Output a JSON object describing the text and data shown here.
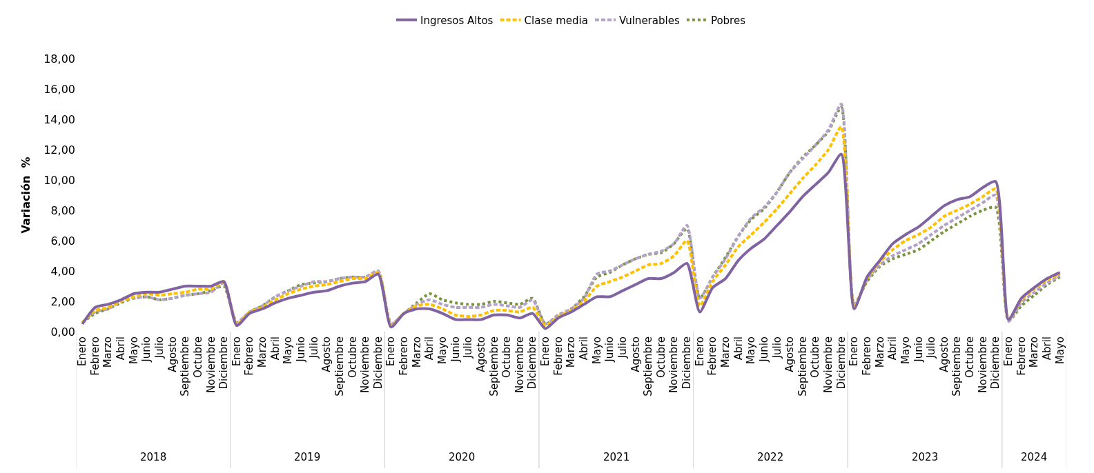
{
  "chart_data": {
    "type": "line",
    "ylabel": "Variación  %",
    "categories": [
      "Enero",
      "Febrero",
      "Marzo",
      "Abril",
      "Mayo",
      "Junio",
      "Julio",
      "Agosto",
      "Septiembre",
      "Octubre",
      "Noviembre",
      "Diciembre",
      "Enero",
      "Febrero",
      "Marzo",
      "Abril",
      "Mayo",
      "Junio",
      "Julio",
      "Agosto",
      "Septiembre",
      "Octubre",
      "Noviembre",
      "Diciembre",
      "Enero",
      "Febrero",
      "Marzo",
      "Abril",
      "Mayo",
      "Junio",
      "Julio",
      "Agosto",
      "Septiembre",
      "Octubre",
      "Noviembre",
      "Diciembre",
      "Enero",
      "Febrero",
      "Marzo",
      "Abril",
      "Mayo",
      "Junio",
      "Julio",
      "Agosto",
      "Septiembre",
      "Octubre",
      "Noviembre",
      "Diciembre",
      "Enero",
      "Febrero",
      "Marzo",
      "Abril",
      "Mayo",
      "Junio",
      "Julio",
      "Agosto",
      "Septiembre",
      "Octubre",
      "Noviembre",
      "Diciembre",
      "Enero",
      "Febrero",
      "Marzo",
      "Abril",
      "Mayo",
      "Junio",
      "Julio",
      "Agosto",
      "Septiembre",
      "Octubre",
      "Noviembre",
      "Diciembre",
      "Enero",
      "Febrero",
      "Marzo",
      "Abril",
      "Mayo"
    ],
    "annotations": [
      "2018",
      "2019",
      "2020",
      "2021",
      "2022",
      "2023",
      "2024"
    ],
    "series": [
      {
        "name": "Ingresos Altos",
        "color": "#8064a2",
        "line_style": "solid",
        "values": [
          0.5,
          1.6,
          1.8,
          2.1,
          2.5,
          2.6,
          2.6,
          2.8,
          3.0,
          3.0,
          3.0,
          3.3,
          0.4,
          1.2,
          1.5,
          1.9,
          2.2,
          2.4,
          2.6,
          2.7,
          3.0,
          3.2,
          3.3,
          3.8,
          0.3,
          1.2,
          1.5,
          1.5,
          1.2,
          0.8,
          0.8,
          0.8,
          1.1,
          1.1,
          0.9,
          1.2,
          0.2,
          0.9,
          1.3,
          1.8,
          2.3,
          2.3,
          2.7,
          3.1,
          3.5,
          3.5,
          3.9,
          4.5,
          1.3,
          2.9,
          3.5,
          4.7,
          5.5,
          6.1,
          7.0,
          7.9,
          8.9,
          9.7,
          10.5,
          11.7,
          1.5,
          3.6,
          4.7,
          5.8,
          6.4,
          6.9,
          7.6,
          8.3,
          8.7,
          8.9,
          9.5,
          9.9,
          0.8,
          2.2,
          2.9,
          3.5,
          3.9
        ]
      },
      {
        "name": "Clase media",
        "color": "#ffc000",
        "line_style": "dashed",
        "values": [
          0.6,
          1.4,
          1.6,
          2.0,
          2.3,
          2.5,
          2.4,
          2.5,
          2.6,
          2.8,
          2.8,
          3.3,
          0.5,
          1.3,
          1.6,
          2.1,
          2.5,
          2.8,
          3.0,
          3.1,
          3.3,
          3.5,
          3.5,
          3.9,
          0.4,
          1.2,
          1.7,
          1.8,
          1.5,
          1.1,
          1.0,
          1.1,
          1.4,
          1.4,
          1.3,
          1.6,
          0.4,
          1.0,
          1.4,
          2.0,
          3.0,
          3.3,
          3.6,
          4.0,
          4.4,
          4.5,
          5.0,
          6.0,
          1.7,
          3.3,
          4.4,
          5.6,
          6.4,
          7.2,
          8.1,
          9.1,
          10.1,
          11.0,
          12.0,
          13.5,
          1.6,
          3.5,
          4.6,
          5.4,
          6.0,
          6.4,
          6.9,
          7.6,
          8.0,
          8.4,
          8.9,
          9.4,
          0.8,
          2.1,
          2.8,
          3.4,
          3.8
        ]
      },
      {
        "name": "Vulnerables",
        "color": "#b3a2c7",
        "line_style": "dashed",
        "values": [
          0.6,
          1.3,
          1.5,
          2.0,
          2.2,
          2.3,
          2.1,
          2.2,
          2.4,
          2.5,
          2.6,
          3.2,
          0.6,
          1.3,
          1.7,
          2.3,
          2.7,
          3.0,
          3.3,
          3.3,
          3.5,
          3.6,
          3.6,
          4.0,
          0.5,
          1.2,
          1.8,
          2.1,
          1.8,
          1.6,
          1.6,
          1.6,
          1.8,
          1.7,
          1.6,
          2.1,
          0.5,
          1.1,
          1.5,
          2.2,
          3.8,
          4.0,
          4.4,
          4.8,
          5.1,
          5.3,
          5.8,
          7.0,
          2.2,
          3.6,
          4.8,
          6.3,
          7.5,
          8.2,
          9.2,
          10.5,
          11.4,
          12.3,
          13.3,
          15.0,
          1.7,
          3.4,
          4.4,
          5.0,
          5.4,
          5.8,
          6.4,
          7.0,
          7.5,
          8.0,
          8.5,
          9.0,
          0.7,
          1.9,
          2.6,
          3.2,
          3.7
        ]
      },
      {
        "name": "Pobres",
        "color": "#77933c",
        "line_style": "dotted",
        "values": [
          0.6,
          1.2,
          1.5,
          1.9,
          2.2,
          2.3,
          2.1,
          2.2,
          2.4,
          2.5,
          2.7,
          3.0,
          0.6,
          1.3,
          1.7,
          2.3,
          2.7,
          3.1,
          3.2,
          3.3,
          3.5,
          3.6,
          3.6,
          4.0,
          0.5,
          1.2,
          1.9,
          2.5,
          2.1,
          1.9,
          1.8,
          1.8,
          2.0,
          1.9,
          1.8,
          2.2,
          0.5,
          1.1,
          1.5,
          2.3,
          3.6,
          3.9,
          4.4,
          4.8,
          5.1,
          5.2,
          5.8,
          6.8,
          2.2,
          3.6,
          4.9,
          6.3,
          7.4,
          8.1,
          9.2,
          10.5,
          11.5,
          12.3,
          13.2,
          14.8,
          1.8,
          3.3,
          4.3,
          4.8,
          5.1,
          5.4,
          6.0,
          6.6,
          7.1,
          7.6,
          8.0,
          8.2,
          0.7,
          1.7,
          2.4,
          3.1,
          3.6
        ]
      }
    ],
    "ylim": [
      0,
      18
    ],
    "yticks": [
      {
        "value": 0,
        "label": "0,00"
      },
      {
        "value": 2,
        "label": "2,00"
      },
      {
        "value": 4,
        "label": "4,00"
      },
      {
        "value": 6,
        "label": "6,00"
      },
      {
        "value": 8,
        "label": "8,00"
      },
      {
        "value": 10,
        "label": "10,00"
      },
      {
        "value": 12,
        "label": "12,00"
      },
      {
        "value": 14,
        "label": "14,00"
      },
      {
        "value": 16,
        "label": "16,00"
      },
      {
        "value": 18,
        "label": "18,00"
      }
    ],
    "legend": "top",
    "marker": "none"
  }
}
